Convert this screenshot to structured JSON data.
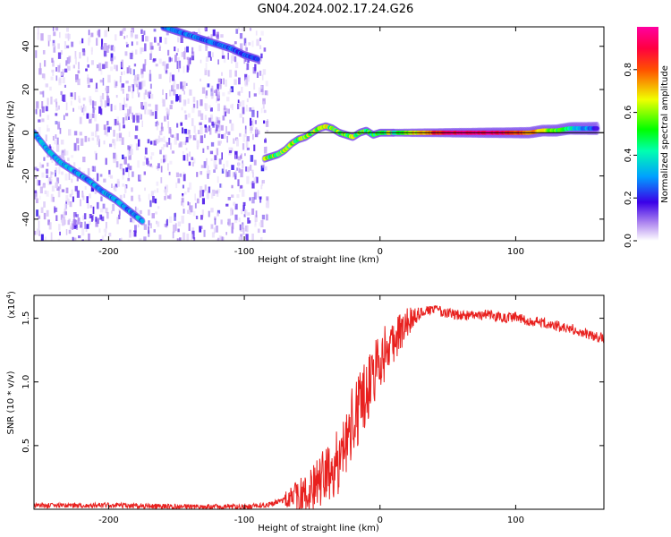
{
  "title": "GN04.2024.002.17.24.G26",
  "colors": {
    "snr_line": "#e8201e",
    "ridge": "#000000",
    "axis": "#000000"
  },
  "chart_data": [
    {
      "id": "spectrogram",
      "type": "heatmap",
      "xlabel": "Height of straight line (km)",
      "ylabel": "Frequency (Hz)",
      "xlim": [
        -255,
        165
      ],
      "ylim": [
        -50,
        49
      ],
      "xticks": [
        -200,
        -100,
        0,
        100
      ],
      "yticks": [
        -40,
        -20,
        0,
        20,
        40
      ],
      "colorbar": {
        "label": "Normalized spectral amplitude",
        "range": [
          0,
          1
        ],
        "ticks": [
          0.0,
          0.2,
          0.4,
          0.6,
          0.8
        ],
        "tick_labels": [
          "0.0",
          "0.2",
          "0.4",
          "0.6",
          "0.8"
        ]
      },
      "ridge_line": {
        "x": [
          -85,
          165
        ],
        "y": [
          0,
          0
        ]
      },
      "tracks": [
        {
          "name": "",
          "x": [
            -255,
            -245,
            -235,
            -225,
            -215,
            -205,
            -195,
            -185,
            -175
          ],
          "y": [
            0,
            -8,
            -14,
            -18,
            -22,
            -27,
            -31,
            -36,
            -41
          ],
          "amplitude": 0.3
        },
        {
          "name": "",
          "x": [
            -160,
            -150,
            -140,
            -130,
            -120,
            -110,
            -100,
            -90
          ],
          "y": [
            49,
            47,
            45,
            43,
            41,
            39,
            36,
            34
          ],
          "amplitude": 0.25
        },
        {
          "name": "",
          "x": [
            -85,
            -80,
            -75,
            -70,
            -65,
            -60,
            -55,
            -50,
            -45,
            -40,
            -35,
            -30,
            -25,
            -20,
            -15,
            -10,
            -5,
            0,
            5,
            10
          ],
          "y": [
            -12,
            -11,
            -10,
            -8,
            -5,
            -3,
            -2,
            0,
            2,
            3,
            2,
            0,
            -1,
            -2,
            0,
            1,
            -1,
            0,
            0,
            0
          ],
          "amplitude": 0.55
        },
        {
          "name": "",
          "x": [
            10,
            20,
            30,
            40,
            50,
            60,
            70,
            80,
            90,
            100,
            110,
            120,
            130,
            140,
            150,
            160
          ],
          "y": [
            0,
            0,
            0,
            0,
            0,
            0,
            0,
            0,
            0,
            0,
            0,
            1,
            1,
            2,
            2,
            2
          ],
          "amplitude": 0.7
        }
      ]
    },
    {
      "id": "snr",
      "type": "line",
      "xlabel": "Height of straight line (km)",
      "ylabel": "SNR (10 * v/v)",
      "yexponent_label": "(x10",
      "yexponent_power": "4",
      "yexponent_close": ")",
      "xlim": [
        -255,
        165
      ],
      "ylim": [
        0,
        1.68
      ],
      "xticks": [
        -200,
        -100,
        0,
        100
      ],
      "yticks": [
        0.5,
        1.0,
        1.5
      ],
      "ytick_labels": [
        "0.5",
        "1.0",
        "1.5"
      ],
      "series": [
        {
          "x": [
            -255,
            -200,
            -150,
            -100,
            -85,
            -75,
            -65,
            -55,
            -50,
            -45,
            -40,
            -35,
            -30,
            -25,
            -20,
            -15,
            -10,
            -5,
            0,
            5,
            10,
            15,
            20,
            25,
            30,
            35,
            40,
            45,
            50,
            60,
            70,
            80,
            90,
            100,
            110,
            120,
            130,
            140,
            150,
            160,
            165
          ],
          "y": [
            0.03,
            0.03,
            0.02,
            0.02,
            0.03,
            0.06,
            0.09,
            0.12,
            0.15,
            0.2,
            0.25,
            0.3,
            0.4,
            0.55,
            0.7,
            0.8,
            0.95,
            1.05,
            1.15,
            1.25,
            1.32,
            1.4,
            1.47,
            1.52,
            1.55,
            1.56,
            1.57,
            1.55,
            1.54,
            1.52,
            1.52,
            1.53,
            1.5,
            1.51,
            1.48,
            1.47,
            1.44,
            1.42,
            1.39,
            1.35,
            1.35
          ]
        }
      ]
    }
  ]
}
